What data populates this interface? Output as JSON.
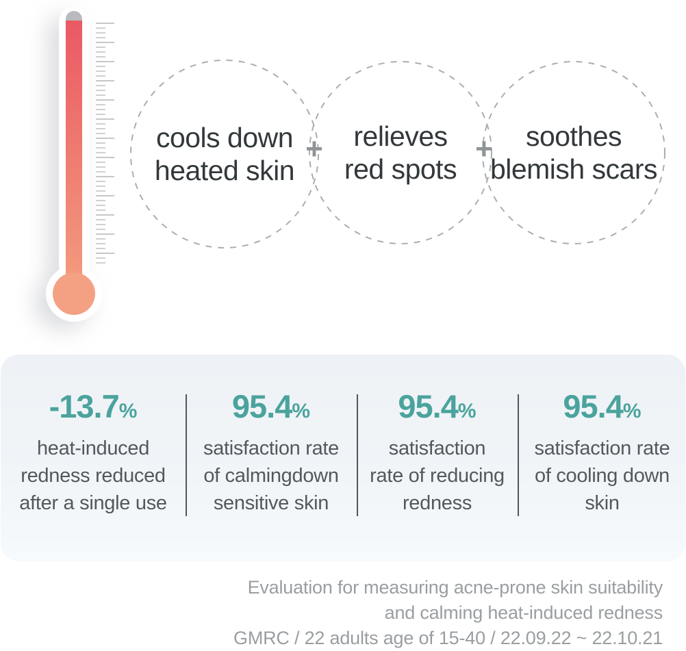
{
  "benefits": {
    "plus": "+",
    "circles": [
      {
        "lines": [
          "cools down",
          "heated skin"
        ]
      },
      {
        "lines": [
          "relieves",
          "red spots"
        ]
      },
      {
        "lines": [
          "soothes",
          "blemish scars"
        ]
      }
    ]
  },
  "stats": {
    "items": [
      {
        "value": "-13.7",
        "unit": "%",
        "lines": [
          "heat-induced",
          "redness reduced",
          "after a single use"
        ]
      },
      {
        "value": "95.4",
        "unit": "%",
        "lines": [
          "satisfaction rate",
          "of calmingdown",
          "sensitive skin"
        ]
      },
      {
        "value": "95.4",
        "unit": "%",
        "lines": [
          "satisfaction",
          "rate of reducing",
          "redness"
        ]
      },
      {
        "value": "95.4",
        "unit": "%",
        "lines": [
          "satisfaction rate",
          "of cooling down",
          "skin"
        ]
      }
    ]
  },
  "footnote": {
    "lines": [
      "Evaluation for measuring acne-prone skin suitability",
      "and calming heat-induced redness",
      "GMRC / 22 adults age of 15-40 / 22.09.22 ~ 22.10.21"
    ]
  },
  "colors": {
    "accent_teal": "#4BA39D",
    "circle_text": "#33383B",
    "stat_text": "#54585C",
    "footnote_text": "#9A9EA1",
    "dash_gray": "#AAADB0",
    "plus_gray": "#8F9497",
    "divider": "#50565C",
    "panel_bg": "#EEF2F6",
    "panel_bg_bottom": "#F7FAFC",
    "thermo_top": "#EA5964",
    "thermo_bottom": "#F4A083",
    "thermo_tip": "#B9BABE",
    "tick": "#CFD0D2"
  }
}
